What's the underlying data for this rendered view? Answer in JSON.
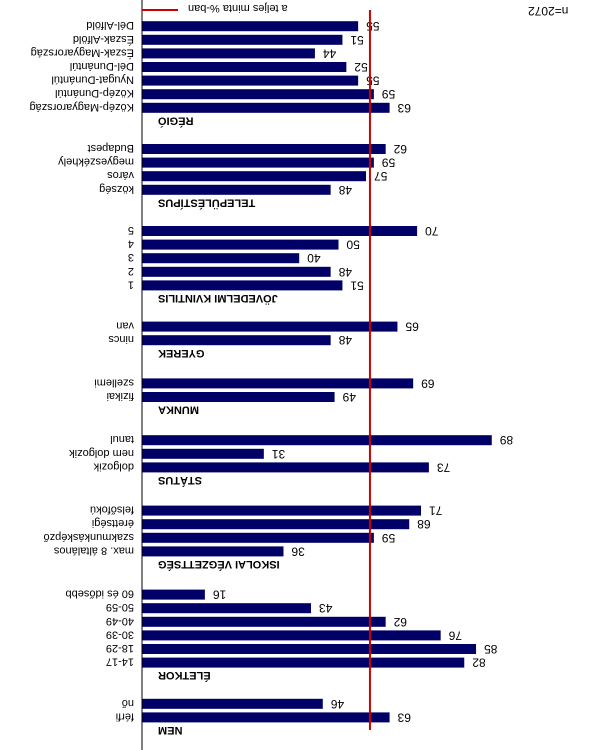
{
  "note": "n=2072",
  "legend": {
    "label": "a teljes minta %-ban",
    "color": "#cc0000"
  },
  "chart_data": {
    "type": "bar",
    "orientation": "horizontal",
    "bar_color": "#000066",
    "reference_line": {
      "value": 58,
      "color": "#cc0000",
      "label": "a teljes minta %-ban"
    },
    "xlim": [
      0,
      100
    ],
    "groups": [
      {
        "label": "NEM",
        "items": [
          {
            "label": "férfi",
            "value": 63
          },
          {
            "label": "nő",
            "value": 46
          }
        ]
      },
      {
        "label": "ÉLETKOR",
        "items": [
          {
            "label": "14-17",
            "value": 82
          },
          {
            "label": "18-29",
            "value": 85
          },
          {
            "label": "30-39",
            "value": 76
          },
          {
            "label": "40-49",
            "value": 62
          },
          {
            "label": "50-59",
            "value": 43
          },
          {
            "label": "60 és idősebb",
            "value": 16
          }
        ]
      },
      {
        "label": "ISKOLAI VÉGZETTSÉG",
        "items": [
          {
            "label": "max. 8 általános",
            "value": 36
          },
          {
            "label": "szakmunkásképző",
            "value": 59
          },
          {
            "label": "érettségi",
            "value": 68
          },
          {
            "label": "felsőfokú",
            "value": 71
          }
        ]
      },
      {
        "label": "STÁTUS",
        "items": [
          {
            "label": "dolgozik",
            "value": 73
          },
          {
            "label": "nem dolgozik",
            "value": 31
          },
          {
            "label": "tanul",
            "value": 89
          }
        ]
      },
      {
        "label": "MUNKA",
        "items": [
          {
            "label": "fizikai",
            "value": 49
          },
          {
            "label": "szellemi",
            "value": 69
          }
        ]
      },
      {
        "label": "GYEREK",
        "items": [
          {
            "label": "nincs",
            "value": 48
          },
          {
            "label": "van",
            "value": 65
          }
        ]
      },
      {
        "label": "JÖVEDELMI KVINTILIS",
        "items": [
          {
            "label": "1",
            "value": 51
          },
          {
            "label": "2",
            "value": 48
          },
          {
            "label": "3",
            "value": 40
          },
          {
            "label": "4",
            "value": 50
          },
          {
            "label": "5",
            "value": 70
          }
        ]
      },
      {
        "label": "TELEPÜLÉSTÍPUS",
        "items": [
          {
            "label": "község",
            "value": 48
          },
          {
            "label": "város",
            "value": 57
          },
          {
            "label": "megyeszékhely",
            "value": 59
          },
          {
            "label": "Budapest",
            "value": 62
          }
        ]
      },
      {
        "label": "RÉGIÓ",
        "items": [
          {
            "label": "Közép-Magyarország",
            "value": 63
          },
          {
            "label": "Közép-Dunántúl",
            "value": 59
          },
          {
            "label": "Nyugat-Dunántúl",
            "value": 55
          },
          {
            "label": "Dél-Dunántúl",
            "value": 52
          },
          {
            "label": "Észak-Magyarország",
            "value": 44
          },
          {
            "label": "Észak-Alföld",
            "value": 51
          },
          {
            "label": "Dél-Alföld",
            "value": 55
          }
        ]
      }
    ]
  }
}
